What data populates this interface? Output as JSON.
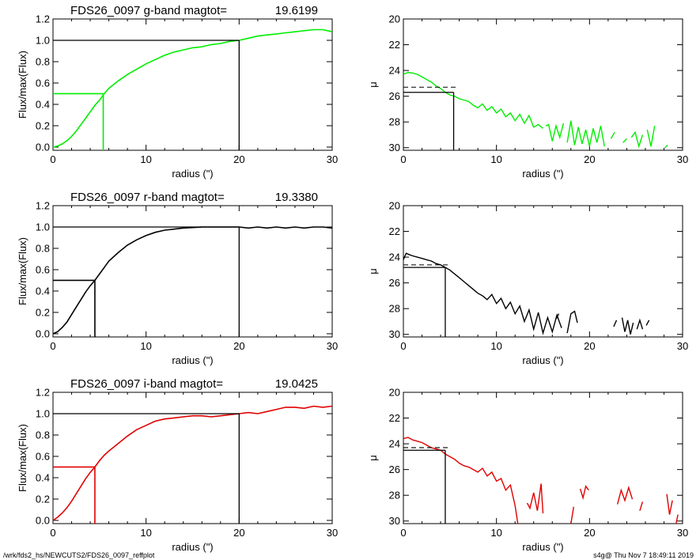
{
  "chart_data": [
    {
      "type": "line",
      "panel": "growth-curve",
      "band": "g",
      "title": "FDS26_0097 g-band  magtot=",
      "magtot": "19.6199",
      "xlabel": "radius (\")",
      "ylabel": "Flux/max(Flux)",
      "xlim": [
        0,
        30
      ],
      "ylim": [
        -0.03,
        1.2
      ],
      "xticks": [
        0,
        10,
        20,
        30
      ],
      "yticks": [
        0.0,
        0.2,
        0.4,
        0.6,
        0.8,
        1.0,
        1.2
      ],
      "ytick_labels": [
        "0.0",
        "0.2",
        "0.4",
        "0.6",
        "0.8",
        "1.0",
        "1.2"
      ],
      "color": "#00ee00",
      "series": [
        {
          "x": [
            0,
            0.5,
            1,
            1.5,
            2,
            2.5,
            3,
            3.5,
            4,
            4.5,
            5,
            5.5,
            6,
            7,
            8,
            9,
            10,
            11,
            12,
            13,
            14,
            15,
            16,
            17,
            18,
            19,
            20,
            21,
            22,
            23,
            24,
            25,
            26,
            27,
            28,
            29,
            29.5,
            30
          ],
          "y": [
            0.0,
            0.01,
            0.03,
            0.06,
            0.1,
            0.15,
            0.21,
            0.27,
            0.33,
            0.39,
            0.44,
            0.5,
            0.55,
            0.62,
            0.68,
            0.73,
            0.78,
            0.82,
            0.86,
            0.89,
            0.91,
            0.93,
            0.94,
            0.96,
            0.97,
            0.99,
            1.0,
            1.02,
            1.04,
            1.05,
            1.06,
            1.07,
            1.08,
            1.09,
            1.1,
            1.1,
            1.09,
            1.08
          ]
        }
      ],
      "half_light_radius": 5.4,
      "half_light_level": 0.5,
      "total_radius": 20,
      "total_level": 1.0
    },
    {
      "type": "line",
      "panel": "surface-brightness",
      "band": "g",
      "xlabel": "radius (\")",
      "ylabel": "μ",
      "xlim": [
        0,
        30
      ],
      "ylim": [
        30.2,
        20
      ],
      "yreversed": true,
      "xticks": [
        0,
        10,
        20,
        30
      ],
      "yticks": [
        20,
        22,
        24,
        26,
        28,
        30
      ],
      "color": "#00ee00",
      "segments": [
        {
          "x": [
            0,
            0.5,
            1,
            1.5,
            2,
            2.5,
            3,
            3.5,
            4,
            4.5,
            5,
            5.5,
            6,
            6.5,
            7,
            7.5,
            8,
            8.5,
            9,
            9.5,
            10,
            10.5,
            11,
            11.5,
            12,
            12.5,
            13,
            13.5,
            14,
            14.5,
            15
          ],
          "y": [
            24.3,
            24.15,
            24.2,
            24.3,
            24.5,
            24.7,
            24.9,
            25.2,
            25.4,
            25.7,
            25.9,
            26.0,
            26.2,
            26.3,
            26.4,
            26.7,
            26.9,
            26.6,
            27.1,
            26.8,
            27.3,
            27.0,
            27.6,
            27.3,
            27.9,
            27.4,
            28.1,
            27.5,
            28.4,
            28.2,
            28.5
          ]
        },
        {
          "x": [
            15.3,
            15.6,
            16,
            16.4,
            16.8,
            17.2
          ],
          "y": [
            28.3,
            28.2,
            29.5,
            28.3,
            29.2,
            28.1
          ]
        },
        {
          "x": [
            17.6,
            18,
            18.4,
            18.8,
            19.2,
            19.6,
            20,
            20.4,
            20.8,
            21.2,
            21.6
          ],
          "y": [
            29.6,
            27.9,
            29.8,
            28.4,
            29.7,
            28.6,
            29.9,
            28.5,
            29.6,
            28.3,
            29.9
          ]
        },
        {
          "x": [
            22.3,
            22.7
          ],
          "y": [
            29.3,
            28.8
          ]
        },
        {
          "x": [
            23.6,
            24
          ],
          "y": [
            29.6,
            29.3
          ]
        },
        {
          "x": [
            24.5,
            24.9,
            25.3,
            25.7
          ],
          "y": [
            29.2,
            28.8,
            29.9,
            29.0
          ]
        },
        {
          "x": [
            26.2,
            26.6,
            27
          ],
          "y": [
            28.6,
            29.9,
            28.3
          ]
        },
        {
          "x": [
            28.1,
            28.4
          ],
          "y": [
            30.0,
            29.8
          ]
        }
      ],
      "dashed_level": 25.3,
      "solid_level": 25.7,
      "marker_x": 5.4
    },
    {
      "type": "line",
      "panel": "growth-curve",
      "band": "r",
      "title": "FDS26_0097 r-band  magtot=",
      "magtot": "19.3380",
      "xlabel": "radius (\")",
      "ylabel": "Flux/max(Flux)",
      "xlim": [
        0,
        30
      ],
      "ylim": [
        -0.03,
        1.2
      ],
      "xticks": [
        0,
        10,
        20,
        30
      ],
      "yticks": [
        0.0,
        0.2,
        0.4,
        0.6,
        0.8,
        1.0,
        1.2
      ],
      "ytick_labels": [
        "0.0",
        "0.2",
        "0.4",
        "0.6",
        "0.8",
        "1.0",
        "1.2"
      ],
      "color": "#000000",
      "series": [
        {
          "x": [
            0,
            0.5,
            1,
            1.5,
            2,
            2.5,
            3,
            3.5,
            4,
            4.5,
            5,
            5.5,
            6,
            7,
            8,
            9,
            10,
            11,
            12,
            13,
            14,
            15,
            16,
            17,
            18,
            19,
            20,
            21,
            22,
            23,
            24,
            25,
            26,
            27,
            28,
            29,
            30
          ],
          "y": [
            0.0,
            0.02,
            0.06,
            0.11,
            0.18,
            0.25,
            0.32,
            0.39,
            0.45,
            0.5,
            0.56,
            0.62,
            0.68,
            0.76,
            0.83,
            0.88,
            0.92,
            0.95,
            0.97,
            0.98,
            0.99,
            0.995,
            1.0,
            1.0,
            1.0,
            1.0,
            1.0,
            0.99,
            1.0,
            0.99,
            1.0,
            0.99,
            1.0,
            0.99,
            1.0,
            1.0,
            0.99
          ]
        }
      ],
      "half_light_radius": 4.5,
      "half_light_level": 0.5,
      "total_radius": 20,
      "total_level": 1.0
    },
    {
      "type": "line",
      "panel": "surface-brightness",
      "band": "r",
      "xlabel": "radius (\")",
      "ylabel": "μ",
      "xlim": [
        0,
        30
      ],
      "ylim": [
        30.2,
        20
      ],
      "yreversed": true,
      "xticks": [
        0,
        10,
        20,
        30
      ],
      "yticks": [
        20,
        22,
        24,
        26,
        28,
        30
      ],
      "color": "#000000",
      "segments": [
        {
          "x": [
            0,
            0.3,
            0.6,
            1,
            1.5,
            2,
            2.5,
            3,
            3.5,
            4,
            4.5,
            5,
            5.5,
            6,
            6.5,
            7,
            7.5,
            8,
            8.5,
            9,
            9.5,
            10,
            10.5,
            11,
            11.5,
            12,
            12.5,
            13,
            13.5,
            14,
            14.5,
            15,
            15.5,
            16,
            16.5,
            17
          ],
          "y": [
            24.2,
            23.7,
            23.8,
            23.9,
            24.0,
            24.1,
            24.2,
            24.3,
            24.5,
            24.6,
            24.8,
            25.0,
            25.3,
            25.6,
            25.9,
            26.2,
            26.5,
            26.8,
            27.0,
            27.3,
            26.9,
            27.6,
            27.2,
            28.0,
            27.5,
            28.4,
            27.8,
            29.0,
            28.1,
            29.6,
            28.3,
            29.9,
            28.7,
            29.8,
            28.5,
            29.5
          ]
        },
        {
          "x": [
            16.4,
            16.7
          ],
          "y": [
            28.8,
            28.4
          ]
        },
        {
          "x": [
            17.6,
            18,
            18.4,
            18.7
          ],
          "y": [
            29.9,
            28.4,
            28.2,
            29.1
          ]
        },
        {
          "x": [
            22.6,
            22.9
          ],
          "y": [
            29.4,
            28.9
          ]
        },
        {
          "x": [
            23.5,
            23.8,
            24.1,
            24.4,
            24.7
          ],
          "y": [
            28.7,
            29.8,
            28.9,
            30.0,
            29.1
          ]
        },
        {
          "x": [
            25.1,
            25.4,
            25.7
          ],
          "y": [
            29.6,
            28.9,
            29.6
          ]
        },
        {
          "x": [
            26.1,
            26.4
          ],
          "y": [
            29.3,
            28.9
          ]
        }
      ],
      "dashed_level": 24.6,
      "solid_level": 24.8,
      "marker_x": 4.5
    },
    {
      "type": "line",
      "panel": "growth-curve",
      "band": "i",
      "title": "FDS26_0097 i-band  magtot=",
      "magtot": "19.0425",
      "xlabel": "radius (\")",
      "ylabel": "Flux/max(Flux)",
      "xlim": [
        0,
        30
      ],
      "ylim": [
        -0.03,
        1.2
      ],
      "xticks": [
        0,
        10,
        20,
        30
      ],
      "yticks": [
        0.0,
        0.2,
        0.4,
        0.6,
        0.8,
        1.0,
        1.2
      ],
      "ytick_labels": [
        "0.0",
        "0.2",
        "0.4",
        "0.6",
        "0.8",
        "1.0",
        "1.2"
      ],
      "color": "#e00000",
      "series": [
        {
          "x": [
            0,
            0.5,
            1,
            1.5,
            2,
            2.5,
            3,
            3.5,
            4,
            4.5,
            5,
            5.5,
            6,
            7,
            8,
            9,
            10,
            11,
            12,
            13,
            14,
            15,
            16,
            17,
            18,
            19,
            20,
            21,
            22,
            23,
            24,
            25,
            26,
            27,
            28,
            29,
            30
          ],
          "y": [
            0.0,
            0.03,
            0.07,
            0.12,
            0.18,
            0.25,
            0.32,
            0.39,
            0.45,
            0.5,
            0.56,
            0.61,
            0.65,
            0.72,
            0.79,
            0.85,
            0.89,
            0.93,
            0.95,
            0.96,
            0.97,
            0.98,
            0.98,
            0.97,
            0.98,
            0.99,
            1.0,
            1.01,
            1.0,
            1.02,
            1.04,
            1.06,
            1.06,
            1.05,
            1.07,
            1.06,
            1.07
          ]
        }
      ],
      "half_light_radius": 4.5,
      "half_light_level": 0.5,
      "total_radius": 20,
      "total_level": 1.0
    },
    {
      "type": "line",
      "panel": "surface-brightness",
      "band": "i",
      "xlabel": "radius (\")",
      "ylabel": "μ",
      "xlim": [
        0,
        30
      ],
      "ylim": [
        30.2,
        20
      ],
      "yreversed": true,
      "xticks": [
        0,
        10,
        20,
        30
      ],
      "yticks": [
        20,
        22,
        24,
        26,
        28,
        30
      ],
      "color": "#e00000",
      "segments": [
        {
          "x": [
            0,
            0.5,
            1,
            1.5,
            2,
            2.5,
            3,
            3.5,
            4,
            4.5,
            5,
            5.5,
            6,
            6.5,
            7,
            7.5,
            8,
            8.5,
            9,
            9.5,
            10,
            10.5,
            11,
            11.5,
            12,
            12.3
          ],
          "y": [
            23.6,
            23.5,
            23.7,
            23.8,
            23.9,
            24.1,
            24.3,
            24.4,
            24.5,
            24.8,
            25.0,
            25.2,
            25.5,
            25.7,
            25.8,
            26.0,
            26.2,
            25.9,
            26.5,
            26.2,
            26.9,
            26.7,
            27.6,
            27.2,
            28.8,
            30.2
          ]
        },
        {
          "x": [
            13.3,
            13.6,
            14,
            14.4,
            14.8,
            15
          ],
          "y": [
            28.6,
            29.0,
            27.8,
            29.2,
            27.1,
            29.4
          ]
        },
        {
          "x": [
            18,
            18.3
          ],
          "y": [
            30.2,
            28.9
          ]
        },
        {
          "x": [
            19,
            19.3,
            19.6,
            19.9
          ],
          "y": [
            27.5,
            28.2,
            27.3,
            27.6
          ]
        },
        {
          "x": [
            23,
            23.4,
            23.8,
            24.2,
            24.6
          ],
          "y": [
            28.7,
            27.6,
            28.4,
            27.4,
            28.3
          ]
        },
        {
          "x": [
            25.4,
            25.7
          ],
          "y": [
            29.2,
            28.5
          ]
        },
        {
          "x": [
            28.3,
            28.6,
            28.9
          ],
          "y": [
            27.9,
            29.5,
            28.4
          ]
        },
        {
          "x": [
            29.3,
            29.5
          ],
          "y": [
            30.2,
            29.5
          ]
        }
      ],
      "dashed_level": 24.3,
      "solid_level": 24.5,
      "marker_x": 4.5
    }
  ],
  "footer": {
    "path": "/wrk/fds2_hs/NEWCUTS2/FDS26_0097_reffplot",
    "stamp": "s4g@  Thu Nov  7 18:49:11 2019"
  }
}
